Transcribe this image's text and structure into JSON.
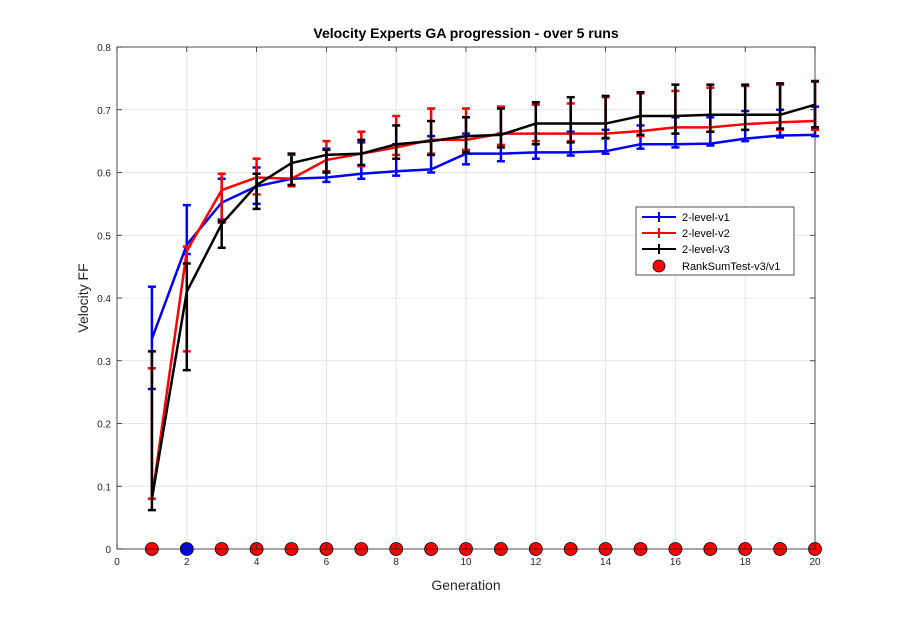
{
  "chart_data": {
    "type": "line",
    "title": "Velocity Experts GA progression - over 5 runs",
    "xlabel": "Generation",
    "ylabel": "Velocity FF",
    "xlim": [
      0,
      20
    ],
    "ylim": [
      0,
      0.8
    ],
    "xticks": [
      0,
      2,
      4,
      6,
      8,
      10,
      12,
      14,
      16,
      18,
      20
    ],
    "yticks": [
      0,
      0.1,
      0.2,
      0.3,
      0.4,
      0.5,
      0.6,
      0.7,
      0.8
    ],
    "grid": true,
    "legend_position": "right",
    "x": [
      1,
      2,
      3,
      4,
      5,
      6,
      7,
      8,
      9,
      10,
      11,
      12,
      13,
      14,
      15,
      16,
      17,
      18,
      19,
      20
    ],
    "series": [
      {
        "name": "2-level-v1",
        "color": "#0000ff",
        "values": [
          0.335,
          0.485,
          0.552,
          0.578,
          0.59,
          0.592,
          0.598,
          0.602,
          0.605,
          0.63,
          0.63,
          0.632,
          0.632,
          0.634,
          0.645,
          0.645,
          0.646,
          0.654,
          0.659,
          0.66
        ],
        "err_low": [
          0.255,
          0.47,
          0.525,
          0.55,
          0.58,
          0.585,
          0.59,
          0.595,
          0.6,
          0.613,
          0.618,
          0.622,
          0.627,
          0.63,
          0.638,
          0.64,
          0.643,
          0.65,
          0.656,
          0.658
        ],
        "err_high": [
          0.418,
          0.548,
          0.59,
          0.608,
          0.63,
          0.638,
          0.648,
          0.645,
          0.658,
          0.662,
          0.662,
          0.662,
          0.665,
          0.668,
          0.675,
          0.688,
          0.688,
          0.698,
          0.7,
          0.705
        ]
      },
      {
        "name": "2-level-v2",
        "color": "#ff0000",
        "values": [
          0.08,
          0.475,
          0.572,
          0.592,
          0.59,
          0.62,
          0.63,
          0.64,
          0.652,
          0.652,
          0.662,
          0.662,
          0.662,
          0.662,
          0.666,
          0.672,
          0.672,
          0.677,
          0.68,
          0.682
        ],
        "err_low": [
          0.08,
          0.315,
          0.52,
          0.565,
          0.578,
          0.602,
          0.61,
          0.628,
          0.63,
          0.636,
          0.644,
          0.65,
          0.65,
          0.654,
          0.658,
          0.662,
          0.665,
          0.668,
          0.668,
          0.668
        ],
        "err_high": [
          0.288,
          0.482,
          0.598,
          0.622,
          0.628,
          0.65,
          0.665,
          0.69,
          0.702,
          0.702,
          0.705,
          0.708,
          0.71,
          0.72,
          0.726,
          0.73,
          0.735,
          0.738,
          0.74,
          0.746
        ]
      },
      {
        "name": "2-level-v3",
        "color": "#000000",
        "values": [
          0.08,
          0.41,
          0.518,
          0.58,
          0.615,
          0.628,
          0.63,
          0.645,
          0.65,
          0.658,
          0.66,
          0.678,
          0.678,
          0.678,
          0.69,
          0.69,
          0.692,
          0.692,
          0.692,
          0.708
        ],
        "err_low": [
          0.062,
          0.285,
          0.48,
          0.542,
          0.58,
          0.6,
          0.612,
          0.622,
          0.628,
          0.632,
          0.64,
          0.645,
          0.648,
          0.655,
          0.66,
          0.662,
          0.665,
          0.668,
          0.67,
          0.672
        ],
        "err_high": [
          0.315,
          0.455,
          0.522,
          0.598,
          0.63,
          0.636,
          0.652,
          0.675,
          0.682,
          0.688,
          0.702,
          0.712,
          0.72,
          0.722,
          0.728,
          0.74,
          0.74,
          0.74,
          0.742,
          0.745
        ]
      }
    ],
    "ranksum": {
      "name": "RankSumTest-v3/v1",
      "y": 0,
      "colors": [
        "#ff0000",
        "#0000ff",
        "#ff0000",
        "#ff0000",
        "#ff0000",
        "#ff0000",
        "#ff0000",
        "#ff0000",
        "#ff0000",
        "#ff0000",
        "#ff0000",
        "#ff0000",
        "#ff0000",
        "#ff0000",
        "#ff0000",
        "#ff0000",
        "#ff0000",
        "#ff0000",
        "#ff0000",
        "#ff0000"
      ]
    }
  }
}
